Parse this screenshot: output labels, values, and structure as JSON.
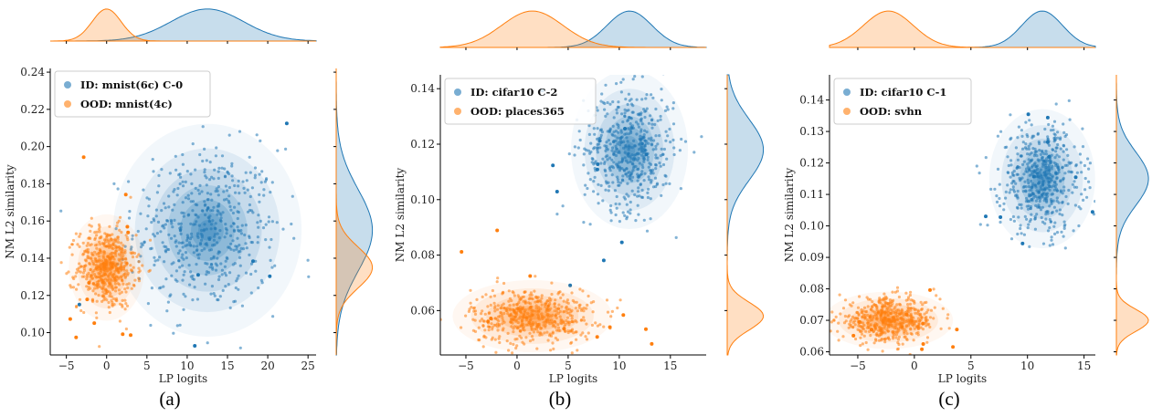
{
  "colors": {
    "id": "#1f77b4",
    "ood": "#ff7f0e"
  },
  "chart_data": [
    {
      "type": "scatter",
      "caption": "(a)",
      "xlabel": "LP logits",
      "ylabel": "NM L2 similarity",
      "xlim": [
        -7,
        26
      ],
      "ylim": [
        0.088,
        0.242
      ],
      "xticks": [
        -5,
        0,
        5,
        10,
        15,
        20,
        25
      ],
      "yticks": [
        0.1,
        0.12,
        0.14,
        0.16,
        0.18,
        0.2,
        0.22,
        0.24
      ],
      "legend_position": "top-left",
      "series": [
        {
          "name": "ID: mnist(6c) C-0",
          "role": "id",
          "mean": [
            12.5,
            0.155
          ],
          "std": [
            4.5,
            0.022
          ]
        },
        {
          "name": "OOD: mnist(4c)",
          "role": "ood",
          "mean": [
            0,
            0.135
          ],
          "std": [
            1.8,
            0.011
          ]
        }
      ]
    },
    {
      "type": "scatter",
      "caption": "(b)",
      "xlabel": "LP logits",
      "ylabel": "NM L2 similarity",
      "xlim": [
        -7.5,
        18.5
      ],
      "ylim": [
        0.044,
        0.145
      ],
      "xticks": [
        -5,
        0,
        5,
        10,
        15
      ],
      "yticks": [
        0.06,
        0.08,
        0.1,
        0.12,
        0.14
      ],
      "legend_position": "top-left",
      "series": [
        {
          "name": "ID: cifar10 C-2",
          "role": "id",
          "mean": [
            11,
            0.118
          ],
          "std": [
            2.2,
            0.011
          ]
        },
        {
          "name": "OOD: places365",
          "role": "ood",
          "mean": [
            1.5,
            0.058
          ],
          "std": [
            3.0,
            0.005
          ]
        }
      ]
    },
    {
      "type": "scatter",
      "caption": "(c)",
      "xlabel": "LP logits",
      "ylabel": "NM L2 similarity",
      "xlim": [
        -7.5,
        16
      ],
      "ylim": [
        0.059,
        0.148
      ],
      "xticks": [
        -5,
        0,
        5,
        10,
        15
      ],
      "yticks": [
        0.06,
        0.07,
        0.08,
        0.09,
        0.1,
        0.11,
        0.12,
        0.13,
        0.14
      ],
      "legend_position": "top-left",
      "series": [
        {
          "name": "ID: cifar10 C-1",
          "role": "id",
          "mean": [
            11.3,
            0.115
          ],
          "std": [
            1.8,
            0.0085
          ]
        },
        {
          "name": "OOD: svhn",
          "role": "ood",
          "mean": [
            -2.3,
            0.07
          ],
          "std": [
            2.2,
            0.0035
          ]
        }
      ]
    }
  ]
}
